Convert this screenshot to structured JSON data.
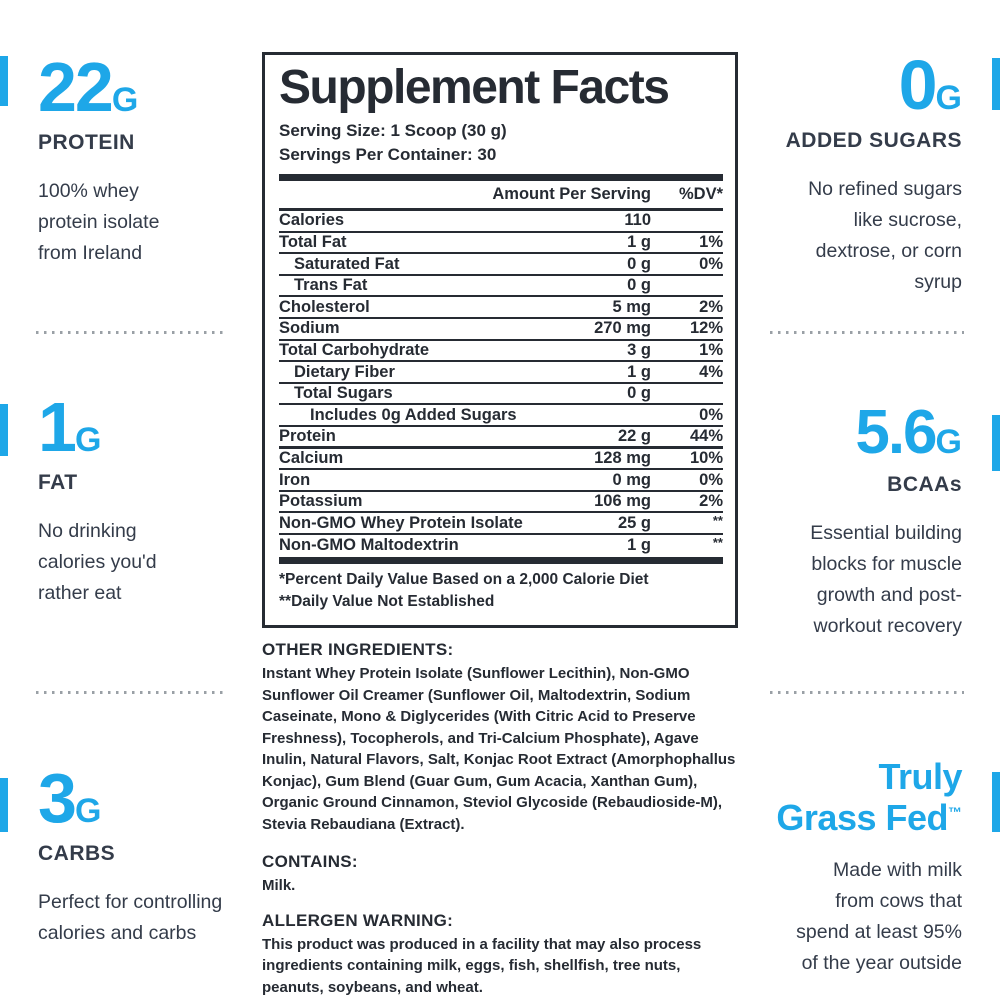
{
  "colors": {
    "accent": "#1ea7e8",
    "panel_ink": "#262b33",
    "side_ink": "#343c4a",
    "divider_dot": "#9aa0a6"
  },
  "highlights": {
    "protein": {
      "value": "22",
      "unit": "G",
      "label": "PROTEIN",
      "description": "100% whey protein isolate from Ireland"
    },
    "fat": {
      "value": "1",
      "unit": "G",
      "label": "FAT",
      "description": "No drinking calories you'd rather eat"
    },
    "carbs": {
      "value": "3",
      "unit": "G",
      "label": "CARBS",
      "description": "Perfect for controlling calories and carbs"
    },
    "added_sugars": {
      "value": "0",
      "unit": "G",
      "label": "ADDED SUGARS",
      "description": "No refined sugars like sucrose, dextrose, or corn syrup"
    },
    "bcaas": {
      "value": "5.6",
      "unit": "G",
      "label": "BCAAs",
      "description": "Essential building blocks for muscle growth and post-workout recovery"
    },
    "grass_fed": {
      "title_line_1": "Truly",
      "title_line_2": "Grass Fed",
      "trademark": "™",
      "description": "Made with milk from cows that spend at least 95% of the year outside"
    }
  },
  "panel": {
    "title": "Supplement Facts",
    "serving_size": "Serving Size: 1 Scoop (30 g)",
    "servings_per_container": "Servings Per Container: 30",
    "columns": {
      "amount": "Amount Per Serving",
      "dv": "%DV*"
    },
    "rows": [
      {
        "name": "Calories",
        "amount": "110",
        "dv": "",
        "indent": 0,
        "sep": "thin"
      },
      {
        "name": "Total Fat",
        "amount": "1 g",
        "dv": "1%",
        "indent": 0,
        "sep": "thin"
      },
      {
        "name": "Saturated Fat",
        "amount": "0 g",
        "dv": "0%",
        "indent": 1,
        "sep": "thin"
      },
      {
        "name": "Trans Fat",
        "amount": "0 g",
        "dv": "",
        "indent": 1,
        "sep": "thin"
      },
      {
        "name": "Cholesterol",
        "amount": "5 mg",
        "dv": "2%",
        "indent": 0,
        "sep": "thin"
      },
      {
        "name": "Sodium",
        "amount": "270 mg",
        "dv": "12%",
        "indent": 0,
        "sep": "thin"
      },
      {
        "name": "Total Carbohydrate",
        "amount": "3 g",
        "dv": "1%",
        "indent": 0,
        "sep": "thin"
      },
      {
        "name": "Dietary Fiber",
        "amount": "1 g",
        "dv": "4%",
        "indent": 1,
        "sep": "thin"
      },
      {
        "name": "Total Sugars",
        "amount": "0 g",
        "dv": "",
        "indent": 1,
        "sep": "thin"
      },
      {
        "name": "Includes 0g Added Sugars",
        "amount": "",
        "dv": "0%",
        "indent": 2,
        "sep": "thin"
      },
      {
        "name": "Protein",
        "amount": "22 g",
        "dv": "44%",
        "indent": 0,
        "sep": "medium"
      },
      {
        "name": "Calcium",
        "amount": "128 mg",
        "dv": "10%",
        "indent": 0,
        "sep": "thin"
      },
      {
        "name": "Iron",
        "amount": "0 mg",
        "dv": "0%",
        "indent": 0,
        "sep": "thin"
      },
      {
        "name": "Potassium",
        "amount": "106 mg",
        "dv": "2%",
        "indent": 0,
        "sep": "thin"
      },
      {
        "name": "Non-GMO Whey Protein Isolate",
        "amount": "25 g",
        "dv": "**",
        "indent": 0,
        "sep": "thin"
      },
      {
        "name": "Non-GMO Maltodextrin",
        "amount": "1 g",
        "dv": "**",
        "indent": 0,
        "sep": "none"
      }
    ],
    "footnotes": [
      "*Percent Daily Value Based on a 2,000 Calorie Diet",
      "**Daily Value Not Established"
    ]
  },
  "sections": {
    "other_ingredients": {
      "heading": "OTHER INGREDIENTS:",
      "text": "Instant Whey Protein Isolate (Sunflower Lecithin), Non-GMO Sunflower Oil Creamer (Sunflower Oil, Maltodextrin, Sodium Caseinate, Mono & Diglycerides (With Citric Acid to Preserve Freshness), Tocopherols, and Tri-Calcium Phosphate), Agave Inulin, Natural Flavors, Salt, Konjac Root Extract (Amorphophallus Konjac), Gum Blend (Guar Gum, Gum Acacia, Xanthan Gum), Organic Ground Cinnamon, Steviol Glycoside (Rebaudioside-M), Stevia Rebaudiana (Extract)."
    },
    "contains": {
      "heading": "CONTAINS:",
      "text": "Milk."
    },
    "allergen": {
      "heading": "ALLERGEN WARNING:",
      "text": "This product was produced in a facility that may also process ingredients containing milk, eggs, fish, shellfish, tree nuts, peanuts, soybeans, and wheat."
    }
  }
}
